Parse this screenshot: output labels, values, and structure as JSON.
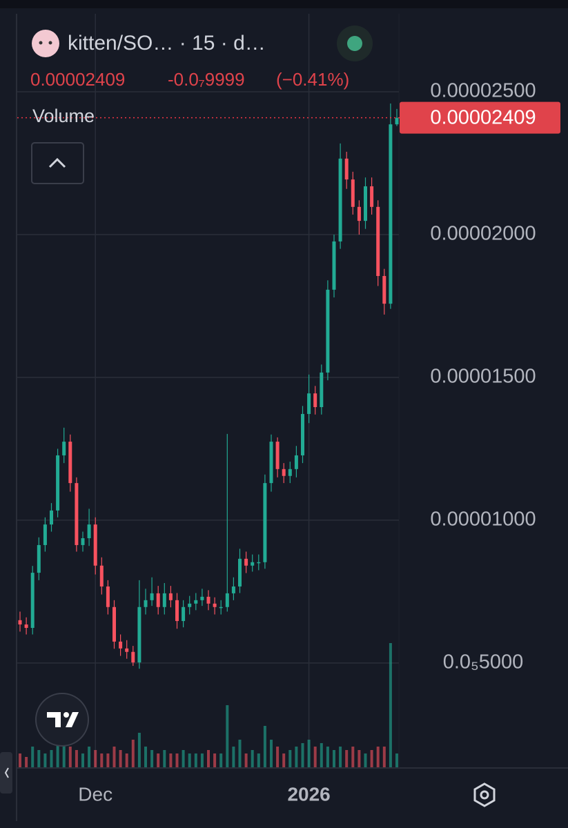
{
  "header": {
    "symbol": "kitten/SO…  · 15 · d…",
    "price": "0.00002409",
    "change": "-0.0₇9999",
    "change_pct": "(−0.41%)",
    "volume_label": "Volume"
  },
  "chart_data": {
    "type": "candlestick",
    "categories": [
      null,
      null,
      null,
      null,
      null,
      null,
      null,
      null,
      null,
      null,
      null,
      null,
      "Dec",
      null,
      null,
      null,
      null,
      null,
      null,
      null,
      null,
      null,
      null,
      null,
      null,
      null,
      null,
      null,
      null,
      null,
      null,
      null,
      null,
      null,
      null,
      null,
      null,
      null,
      null,
      null,
      null,
      null,
      null,
      null,
      null,
      null,
      "2026",
      null,
      null,
      null,
      null,
      null,
      null,
      null,
      null,
      null,
      null,
      null,
      null,
      null,
      null
    ],
    "open": [
      6.5e-06,
      6.35e-06,
      6.23e-06,
      8.16e-06,
      9.13e-06,
      9.85e-06,
      1.034e-05,
      1.227e-05,
      1.275e-05,
      1.13e-05,
      9.13e-06,
      9.37e-06,
      9.85e-06,
      8.41e-06,
      7.68e-06,
      6.96e-06,
      5.75e-06,
      5.51e-06,
      5.39e-06,
      5.02e-06,
      6.96e-06,
      7.2e-06,
      7.44e-06,
      6.96e-06,
      7.44e-06,
      7.2e-06,
      6.47e-06,
      6.96e-06,
      7.08e-06,
      7.2e-06,
      7.32e-06,
      7.08e-06,
      6.96e-06,
      6.96e-06,
      7.44e-06,
      7.68e-06,
      8.65e-06,
      8.41e-06,
      8.53e-06,
      8.53e-06,
      1.13e-05,
      1.275e-05,
      1.179e-05,
      1.155e-05,
      1.179e-05,
      1.227e-05,
      1.372e-05,
      1.444e-05,
      1.396e-05,
      1.517e-05,
      1.807e-05,
      1.976e-05,
      2.266e-05,
      2.193e-05,
      2.097e-05,
      2.048e-05,
      2.169e-05,
      2.097e-05,
      1.855e-05,
      1.758e-05,
      2.386e-05
    ],
    "high": [
      6.8e-06,
      6.6e-06,
      8.4e-06,
      9.4e-06,
      1.01e-05,
      1.06e-05,
      1.25e-05,
      1.324e-05,
      1.3e-05,
      1.15e-05,
      9.6e-06,
      1.04e-05,
      1.01e-05,
      8.7e-06,
      7.9e-06,
      7.2e-06,
      6e-06,
      5.8e-06,
      5.6e-06,
      7.9e-06,
      7.6e-06,
      8e-06,
      7.7e-06,
      7.8e-06,
      7.7e-06,
      7.45e-06,
      7.2e-06,
      7.35e-06,
      7.45e-06,
      7.6e-06,
      7.55e-06,
      7.3e-06,
      7.2e-06,
      1.302e-05,
      8e-06,
      9e-06,
      8.9e-06,
      8.8e-06,
      8.8e-06,
      1.16e-05,
      1.3e-05,
      1.29e-05,
      1.2e-05,
      1.205e-05,
      1.26e-05,
      1.4e-05,
      1.51e-05,
      1.47e-05,
      1.545e-05,
      1.84e-05,
      2e-05,
      2.319e-05,
      2.29e-05,
      2.22e-05,
      2.12e-05,
      2.2e-05,
      2.2e-05,
      2.12e-05,
      1.88e-05,
      2.459e-05,
      2.44e-05
    ],
    "low": [
      6.1e-06,
      6e-06,
      6e-06,
      7.9e-06,
      8.9e-06,
      9.6e-06,
      1.01e-05,
      1.2e-05,
      1.1e-05,
      8.9e-06,
      8.9e-06,
      9.1e-06,
      8.1e-06,
      7.4e-06,
      6.7e-06,
      5.5e-06,
      5.25e-06,
      5.15e-06,
      4.9e-06,
      4.8e-06,
      6.7e-06,
      7e-06,
      6.7e-06,
      6.7e-06,
      6.95e-06,
      6.2e-06,
      6.25e-06,
      6.7e-06,
      6.85e-06,
      7e-06,
      6.85e-06,
      6.7e-06,
      6.7e-06,
      6.8e-06,
      7.2e-06,
      7.45e-06,
      8.15e-06,
      8.2e-06,
      8.25e-06,
      8.3e-06,
      1.1e-05,
      1.15e-05,
      1.13e-05,
      1.13e-05,
      1.15e-05,
      1.2e-05,
      1.34e-05,
      1.37e-05,
      1.37e-05,
      1.49e-05,
      1.78e-05,
      1.95e-05,
      2.16e-05,
      2.07e-05,
      2e-05,
      2.02e-05,
      2.07e-05,
      1.82e-05,
      1.72e-05,
      1.74e-05,
      2.38e-05
    ],
    "close": [
      6.35e-06,
      6.23e-06,
      8.16e-06,
      9.13e-06,
      9.85e-06,
      1.034e-05,
      1.227e-05,
      1.275e-05,
      1.13e-05,
      9.13e-06,
      9.37e-06,
      9.85e-06,
      8.41e-06,
      7.68e-06,
      6.96e-06,
      5.75e-06,
      5.51e-06,
      5.39e-06,
      5.02e-06,
      6.96e-06,
      7.2e-06,
      7.44e-06,
      6.96e-06,
      7.44e-06,
      7.2e-06,
      6.47e-06,
      6.96e-06,
      7.08e-06,
      7.2e-06,
      7.32e-06,
      7.08e-06,
      6.96e-06,
      6.96e-06,
      7.44e-06,
      7.68e-06,
      8.65e-06,
      8.41e-06,
      8.53e-06,
      8.53e-06,
      1.13e-05,
      1.275e-05,
      1.179e-05,
      1.155e-05,
      1.179e-05,
      1.227e-05,
      1.372e-05,
      1.444e-05,
      1.396e-05,
      1.517e-05,
      1.807e-05,
      1.976e-05,
      2.266e-05,
      2.193e-05,
      2.097e-05,
      2.048e-05,
      2.169e-05,
      2.097e-05,
      1.855e-05,
      1.758e-05,
      2.386e-05,
      2.409e-05
    ],
    "volume": [
      20,
      15,
      30,
      25,
      20,
      25,
      40,
      35,
      30,
      25,
      20,
      30,
      25,
      20,
      20,
      30,
      25,
      20,
      40,
      50,
      30,
      25,
      20,
      25,
      20,
      20,
      25,
      20,
      20,
      20,
      25,
      20,
      20,
      90,
      30,
      40,
      20,
      25,
      20,
      60,
      40,
      30,
      20,
      25,
      30,
      35,
      40,
      30,
      35,
      30,
      25,
      30,
      25,
      30,
      25,
      20,
      25,
      30,
      30,
      180,
      20
    ],
    "up_color": "#22ab94",
    "down_color": "#f7525f",
    "ylim": [
      1.35e-06,
      2.773e-05
    ],
    "yticks": [
      {
        "value": 2.5e-05,
        "label": "0.00002500"
      },
      {
        "value": 2e-05,
        "label": "0.00002000"
      },
      {
        "value": 1.5e-05,
        "label": "0.00001500"
      },
      {
        "value": 1e-05,
        "label": "0.00001000"
      },
      {
        "value": 5e-06,
        "label": "0.0₅5000"
      }
    ],
    "last_price": {
      "value": 2.409e-05,
      "label": "0.00002409"
    },
    "grid": true
  }
}
